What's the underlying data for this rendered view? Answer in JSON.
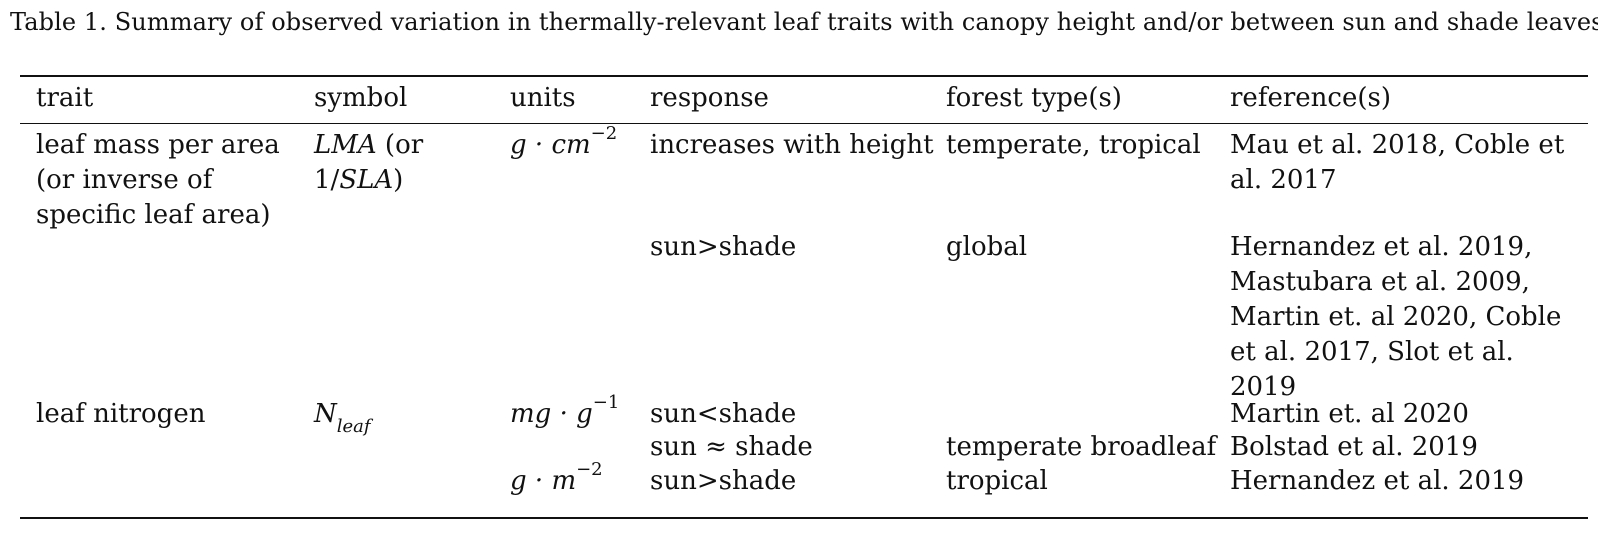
{
  "caption": "Table 1.  Summary of observed variation in thermally-relevant leaf traits with canopy height and/or between sun and shade leaves",
  "headers": {
    "trait": "trait",
    "symbol": "symbol",
    "units": "units",
    "response": "response",
    "forest": "forest type(s)",
    "ref": "reference(s)"
  },
  "rows": [
    {
      "trait_lines": [
        "leaf mass per area",
        "(or inverse of",
        "specific leaf area)"
      ],
      "symbol_main": "LMA",
      "symbol_paren_open": " (or",
      "symbol_line2": "1/",
      "symbol_line2_ital": "SLA",
      "symbol_line2_close": ")",
      "units_base": "g · cm",
      "units_exp": "−2",
      "response": "increases with height",
      "forest": "temperate, tropical",
      "ref_lines": [
        "Mau et al.  2018, Coble et",
        "al.  2017"
      ]
    },
    {
      "response": "sun>shade",
      "forest": "global",
      "ref_lines": [
        "Hernandez et al.  2019,",
        "Mastubara et al.  2009,",
        "Martin et.  al 2020, Coble",
        "et al.  2017, Slot et al.",
        "2019"
      ]
    },
    {
      "trait": "leaf nitrogen",
      "symbol_base": "N",
      "symbol_sub": "leaf",
      "units_base": "mg · g",
      "units_exp": "−1",
      "response": "sun<shade",
      "forest": "",
      "ref": "Martin et.  al 2020"
    },
    {
      "response": "sun ≈ shade",
      "forest": "temperate broadleaf",
      "ref": "Bolstad et al.  2019"
    },
    {
      "units_base": "g · m",
      "units_exp": "−2",
      "response": "sun>shade",
      "forest": "tropical",
      "ref": "Hernandez et al.  2019"
    }
  ]
}
